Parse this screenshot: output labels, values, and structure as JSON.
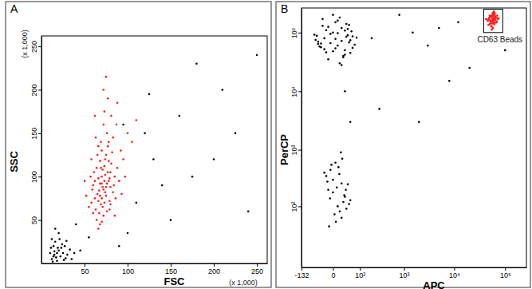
{
  "chart_data": [
    {
      "type": "scatter",
      "title": "A",
      "xlabel": "FSC",
      "ylabel": "SSC",
      "xlim": [
        0,
        262
      ],
      "ylim": [
        0,
        262
      ],
      "xticks": [
        50,
        100,
        150,
        200,
        250
      ],
      "yticks": [
        50,
        100,
        150,
        200,
        250
      ],
      "grid": false,
      "annotations": [
        {
          "text": "(x 1,000)",
          "axis": "y"
        },
        {
          "text": "(x 1,000)",
          "axis": "x"
        }
      ],
      "series": [
        {
          "color": "#ff1a1a",
          "x": [
            72,
            68,
            75,
            70,
            65,
            78,
            73,
            69,
            80,
            62,
            74,
            71,
            66,
            77,
            83,
            60,
            76,
            70,
            64,
            79,
            73,
            67,
            81,
            58,
            85,
            72,
            69,
            75,
            63,
            78,
            71,
            66,
            74,
            80,
            68,
            77,
            61,
            84,
            70,
            76,
            65,
            82,
            59,
            73,
            67,
            79,
            72,
            88,
            62,
            75,
            55,
            90,
            70,
            68,
            86,
            64,
            78,
            71,
            57,
            83,
            74,
            69,
            76,
            66,
            80,
            73,
            92,
            60,
            87,
            70,
            95,
            52,
            77,
            85,
            63,
            72,
            100,
            58,
            68,
            81,
            105,
            50,
            88,
            66,
            97,
            75,
            110,
            62,
            93,
            79
          ],
          "values": [
            85,
            92,
            78,
            100,
            80,
            95,
            70,
            110,
            88,
            75,
            120,
            65,
            98,
            105,
            82,
            90,
            60,
            130,
            110,
            72,
            95,
            84,
            115,
            70,
            100,
            55,
            140,
            125,
            62,
            118,
            88,
            72,
            102,
            68,
            78,
            135,
            105,
            90,
            48,
            150,
            125,
            128,
            85,
            112,
            58,
            98,
            160,
            110,
            95,
            88,
            65,
            95,
            75,
            118,
            75,
            50,
            140,
            108,
            100,
            145,
            82,
            68,
            92,
            135,
            105,
            175,
            130,
            58,
            160,
            92,
            120,
            78,
            190,
            55,
            145,
            200,
            150,
            120,
            45,
            170,
            140,
            95,
            185,
            40,
            100,
            215,
            165,
            170,
            80,
            62
          ]
        },
        {
          "color": "#000000",
          "x": [
            12,
            15,
            18,
            20,
            14,
            22,
            25,
            16,
            10,
            28,
            19,
            13,
            24,
            17,
            30,
            11,
            21,
            26,
            15,
            33,
            18,
            23,
            12,
            27,
            35,
            20,
            14,
            29,
            38,
            16,
            120,
            180,
            210,
            150,
            90,
            240,
            130,
            95,
            40,
            160,
            200,
            110,
            250,
            45,
            140,
            55,
            175,
            125,
            225,
            100
          ],
          "values": [
            5,
            10,
            3,
            15,
            20,
            8,
            12,
            25,
            12,
            6,
            18,
            2,
            22,
            7,
            10,
            18,
            28,
            4,
            14,
            16,
            12,
            18,
            28,
            20,
            5,
            35,
            8,
            26,
            12,
            40,
            150,
            230,
            200,
            50,
            20,
            60,
            120,
            160,
            45,
            170,
            120,
            70,
            240,
            15,
            90,
            30,
            100,
            195,
            150,
            35
          ]
        }
      ]
    },
    {
      "type": "scatter",
      "title": "B",
      "xlabel": "APC",
      "ylabel": "PerCP",
      "log": true,
      "xlim": [
        -132,
        262144
      ],
      "ylim": [
        0,
        262144
      ],
      "xticks": [
        -132,
        0,
        {
          "value": 100,
          "label": "10²"
        },
        {
          "value": 1000,
          "label": "10³"
        },
        {
          "value": 10000,
          "label": "10⁴"
        },
        {
          "value": 100000,
          "label": "10⁵"
        }
      ],
      "yticks": [
        {
          "value": 100,
          "label": "10²"
        },
        {
          "value": 1000,
          "label": "10³"
        },
        {
          "value": 10000,
          "label": "10⁴"
        },
        {
          "value": 100000,
          "label": "10⁵"
        }
      ],
      "grid": false,
      "annotations": [
        {
          "text": "CD63 Beads",
          "x": [
            38000,
            90000
          ],
          "y": [
            100000,
            250000
          ]
        }
      ],
      "series": [
        {
          "color": "#ff1a1a",
          "x": [
            55000,
            60000,
            52000,
            58000,
            65000,
            50000,
            62000,
            57000,
            48000,
            68000,
            54000,
            61000,
            59000,
            46000,
            70000,
            53000,
            63000,
            56000,
            66000,
            51000,
            58000,
            49000,
            64000,
            55000,
            60000,
            72000,
            45000,
            57000,
            62000,
            53000,
            67000,
            59000,
            50000,
            56000,
            61000,
            54000,
            75000,
            47000,
            63000,
            58000,
            52000,
            65000,
            57000,
            60000,
            42000,
            69000,
            55000,
            62000,
            50000,
            59000
          ],
          "values": [
            160000,
            175000,
            150000,
            190000,
            165000,
            140000,
            200000,
            155000,
            170000,
            180000,
            185000,
            145000,
            168000,
            158000,
            195000,
            130000,
            210000,
            172000,
            150000,
            162000,
            205000,
            178000,
            188000,
            125000,
            152000,
            170000,
            165000,
            215000,
            138000,
            192000,
            148000,
            160000,
            182000,
            198000,
            220000,
            143000,
            175000,
            135000,
            168000,
            120000,
            158000,
            185000,
            142000,
            230000,
            170000,
            155000,
            112000,
            178000,
            195000,
            163000
          ]
        },
        {
          "color": "#000000",
          "x": [
            10,
            -20,
            30,
            0,
            -40,
            50,
            20,
            -10,
            40,
            -30,
            60,
            5,
            -50,
            25,
            -15,
            35,
            15,
            -5,
            45,
            -25,
            0,
            20,
            -35,
            55,
            10,
            -45,
            30,
            -10,
            70,
            5,
            15,
            -20,
            40,
            -5,
            25,
            -55,
            50,
            0,
            -30,
            35,
            80,
            -15,
            10,
            45,
            -40,
            20,
            -25,
            60,
            5,
            30,
            10,
            -10,
            20,
            0,
            30,
            -5,
            15,
            40,
            5,
            25,
            -15,
            35,
            0,
            12,
            -8,
            22,
            50,
            8,
            -20,
            18,
            28,
            -12,
            3,
            45,
            14,
            -3,
            33,
            6,
            20,
            -6,
            200,
            1500,
            5000,
            12000,
            3000,
            800,
            300,
            2000,
            20000,
            100000,
            50,
            30,
            8000
          ],
          "values": [
            60000,
            80000,
            50000,
            100000,
            70000,
            45000,
            120000,
            35000,
            90000,
            65000,
            55000,
            150000,
            75000,
            40000,
            110000,
            85000,
            30000,
            95000,
            68000,
            130000,
            48000,
            72000,
            58000,
            105000,
            160000,
            88000,
            42000,
            125000,
            62000,
            78000,
            180000,
            52000,
            115000,
            66000,
            38000,
            92000,
            74000,
            200000,
            56000,
            140000,
            82000,
            46000,
            98000,
            135000,
            64000,
            28000,
            170000,
            86000,
            54000,
            108000,
            100,
            200,
            60,
            300,
            150,
            450,
            80,
            250,
            600,
            120,
            350,
            90,
            180,
            500,
            40,
            700,
            130,
            220,
            400,
            900,
            160,
            280,
            70,
            110,
            380,
            550,
            200,
            50,
            260,
            140,
            80000,
            100000,
            120000,
            150000,
            60000,
            200000,
            5000,
            3000,
            25000,
            50000,
            3000,
            10000,
            15000
          ]
        }
      ]
    }
  ]
}
